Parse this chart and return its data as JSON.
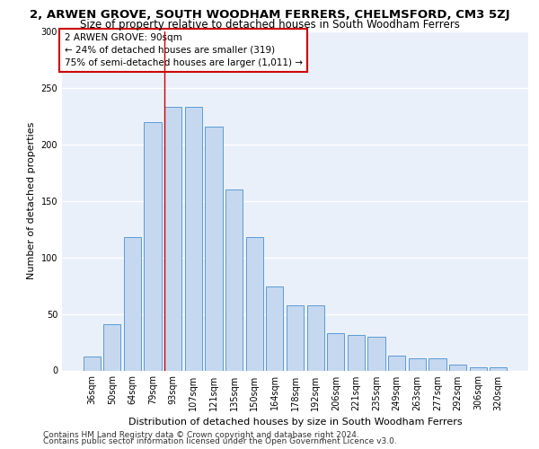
{
  "title": "2, ARWEN GROVE, SOUTH WOODHAM FERRERS, CHELMSFORD, CM3 5ZJ",
  "subtitle": "Size of property relative to detached houses in South Woodham Ferrers",
  "xlabel": "Distribution of detached houses by size in South Woodham Ferrers",
  "ylabel": "Number of detached properties",
  "categories": [
    "36sqm",
    "50sqm",
    "64sqm",
    "79sqm",
    "93sqm",
    "107sqm",
    "121sqm",
    "135sqm",
    "150sqm",
    "164sqm",
    "178sqm",
    "192sqm",
    "206sqm",
    "221sqm",
    "235sqm",
    "249sqm",
    "263sqm",
    "277sqm",
    "292sqm",
    "306sqm",
    "320sqm"
  ],
  "values": [
    12,
    41,
    118,
    220,
    233,
    233,
    216,
    160,
    118,
    74,
    58,
    58,
    33,
    31,
    30,
    13,
    11,
    11,
    5,
    3,
    3
  ],
  "bar_color": "#c5d8f0",
  "bar_edge_color": "#5b9bd5",
  "annotation_text": "2 ARWEN GROVE: 90sqm\n← 24% of detached houses are smaller (319)\n75% of semi-detached houses are larger (1,011) →",
  "annotation_box_color": "#ffffff",
  "annotation_box_edge": "#cc0000",
  "bg_color": "#eaf0fa",
  "grid_color": "#ffffff",
  "footer_line1": "Contains HM Land Registry data © Crown copyright and database right 2024.",
  "footer_line2": "Contains public sector information licensed under the Open Government Licence v3.0.",
  "ylim": [
    0,
    300
  ],
  "yticks": [
    0,
    50,
    100,
    150,
    200,
    250,
    300
  ],
  "red_line_index": 4,
  "title_fontsize": 9.5,
  "subtitle_fontsize": 8.5,
  "axis_label_fontsize": 8,
  "tick_fontsize": 7,
  "annotation_fontsize": 7.5,
  "footer_fontsize": 6.5
}
